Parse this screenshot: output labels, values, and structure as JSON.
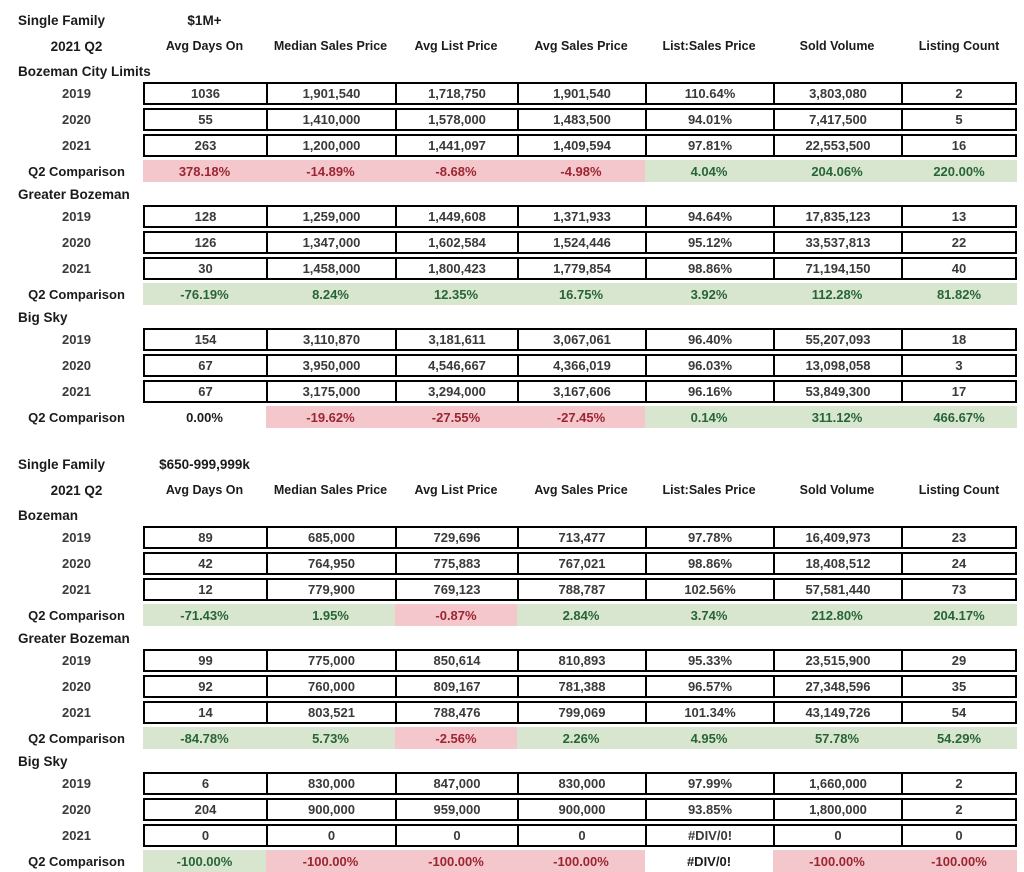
{
  "colors": {
    "good_bg": "#d8e6d0",
    "good_text": "#276536",
    "bad_bg": "#f4c7cc",
    "bad_text": "#9c2531",
    "neutral_bg": "#ffffff",
    "neutral_text": "#1b1b1b"
  },
  "chart_data": [
    {
      "type": "table",
      "title": "Single Family",
      "price_range": "$1M+",
      "period": "2021 Q2",
      "columns": [
        "Avg Days On",
        "Median Sales Price",
        "Avg List Price",
        "Avg Sales Price",
        "List:Sales Price",
        "Sold Volume",
        "Listing Count"
      ],
      "sections": [
        {
          "name": "Bozeman City Limits",
          "rows": [
            {
              "label": "2019",
              "values": [
                "1036",
                "1,901,540",
                "1,718,750",
                "1,901,540",
                "110.64%",
                "3,803,080",
                "2"
              ]
            },
            {
              "label": "2020",
              "values": [
                "55",
                "1,410,000",
                "1,578,000",
                "1,483,500",
                "94.01%",
                "7,417,500",
                "5"
              ]
            },
            {
              "label": "2021",
              "values": [
                "263",
                "1,200,000",
                "1,441,097",
                "1,409,594",
                "97.81%",
                "22,553,500",
                "16"
              ]
            }
          ],
          "comparison": {
            "label": "Q2 Comparison",
            "values": [
              "378.18%",
              "-14.89%",
              "-8.68%",
              "-4.98%",
              "4.04%",
              "204.06%",
              "220.00%"
            ],
            "styles": [
              "bad",
              "bad",
              "bad",
              "bad",
              "good",
              "good",
              "good"
            ]
          }
        },
        {
          "name": "Greater Bozeman",
          "rows": [
            {
              "label": "2019",
              "values": [
                "128",
                "1,259,000",
                "1,449,608",
                "1,371,933",
                "94.64%",
                "17,835,123",
                "13"
              ]
            },
            {
              "label": "2020",
              "values": [
                "126",
                "1,347,000",
                "1,602,584",
                "1,524,446",
                "95.12%",
                "33,537,813",
                "22"
              ]
            },
            {
              "label": "2021",
              "values": [
                "30",
                "1,458,000",
                "1,800,423",
                "1,779,854",
                "98.86%",
                "71,194,150",
                "40"
              ]
            }
          ],
          "comparison": {
            "label": "Q2 Comparison",
            "values": [
              "-76.19%",
              "8.24%",
              "12.35%",
              "16.75%",
              "3.92%",
              "112.28%",
              "81.82%"
            ],
            "styles": [
              "good",
              "good",
              "good",
              "good",
              "good",
              "good",
              "good"
            ]
          }
        },
        {
          "name": "Big Sky",
          "rows": [
            {
              "label": "2019",
              "values": [
                "154",
                "3,110,870",
                "3,181,611",
                "3,067,061",
                "96.40%",
                "55,207,093",
                "18"
              ]
            },
            {
              "label": "2020",
              "values": [
                "67",
                "3,950,000",
                "4,546,667",
                "4,366,019",
                "96.03%",
                "13,098,058",
                "3"
              ]
            },
            {
              "label": "2021",
              "values": [
                "67",
                "3,175,000",
                "3,294,000",
                "3,167,606",
                "96.16%",
                "53,849,300",
                "17"
              ]
            }
          ],
          "comparison": {
            "label": "Q2 Comparison",
            "values": [
              "0.00%",
              "-19.62%",
              "-27.55%",
              "-27.45%",
              "0.14%",
              "311.12%",
              "466.67%"
            ],
            "styles": [
              "neutral",
              "bad",
              "bad",
              "bad",
              "good",
              "good",
              "good"
            ]
          }
        }
      ]
    },
    {
      "type": "table",
      "title": "Single Family",
      "price_range": "$650-999,999k",
      "period": "2021 Q2",
      "columns": [
        "Avg Days On",
        "Median Sales Price",
        "Avg List Price",
        "Avg Sales Price",
        "List:Sales Price",
        "Sold Volume",
        "Listing Count"
      ],
      "sections": [
        {
          "name": "Bozeman",
          "rows": [
            {
              "label": "2019",
              "values": [
                "89",
                "685,000",
                "729,696",
                "713,477",
                "97.78%",
                "16,409,973",
                "23"
              ]
            },
            {
              "label": "2020",
              "values": [
                "42",
                "764,950",
                "775,883",
                "767,021",
                "98.86%",
                "18,408,512",
                "24"
              ]
            },
            {
              "label": "2021",
              "values": [
                "12",
                "779,900",
                "769,123",
                "788,787",
                "102.56%",
                "57,581,440",
                "73"
              ]
            }
          ],
          "comparison": {
            "label": "Q2 Comparison",
            "values": [
              "-71.43%",
              "1.95%",
              "-0.87%",
              "2.84%",
              "3.74%",
              "212.80%",
              "204.17%"
            ],
            "styles": [
              "good",
              "good",
              "bad",
              "good",
              "good",
              "good",
              "good"
            ]
          }
        },
        {
          "name": "Greater Bozeman",
          "rows": [
            {
              "label": "2019",
              "values": [
                "99",
                "775,000",
                "850,614",
                "810,893",
                "95.33%",
                "23,515,900",
                "29"
              ]
            },
            {
              "label": "2020",
              "values": [
                "92",
                "760,000",
                "809,167",
                "781,388",
                "96.57%",
                "27,348,596",
                "35"
              ]
            },
            {
              "label": "2021",
              "values": [
                "14",
                "803,521",
                "788,476",
                "799,069",
                "101.34%",
                "43,149,726",
                "54"
              ]
            }
          ],
          "comparison": {
            "label": "Q2 Comparison",
            "values": [
              "-84.78%",
              "5.73%",
              "-2.56%",
              "2.26%",
              "4.95%",
              "57.78%",
              "54.29%"
            ],
            "styles": [
              "good",
              "good",
              "bad",
              "good",
              "good",
              "good",
              "good"
            ]
          }
        },
        {
          "name": "Big Sky",
          "rows": [
            {
              "label": "2019",
              "values": [
                "6",
                "830,000",
                "847,000",
                "830,000",
                "97.99%",
                "1,660,000",
                "2"
              ]
            },
            {
              "label": "2020",
              "values": [
                "204",
                "900,000",
                "959,000",
                "900,000",
                "93.85%",
                "1,800,000",
                "2"
              ]
            },
            {
              "label": "2021",
              "values": [
                "0",
                "0",
                "0",
                "0",
                "#DIV/0!",
                "0",
                "0"
              ]
            }
          ],
          "comparison": {
            "label": "Q2 Comparison",
            "values": [
              "-100.00%",
              "-100.00%",
              "-100.00%",
              "-100.00%",
              "#DIV/0!",
              "-100.00%",
              "-100.00%"
            ],
            "styles": [
              "good",
              "bad",
              "bad",
              "bad",
              "neutral",
              "bad",
              "bad"
            ]
          }
        }
      ]
    }
  ]
}
